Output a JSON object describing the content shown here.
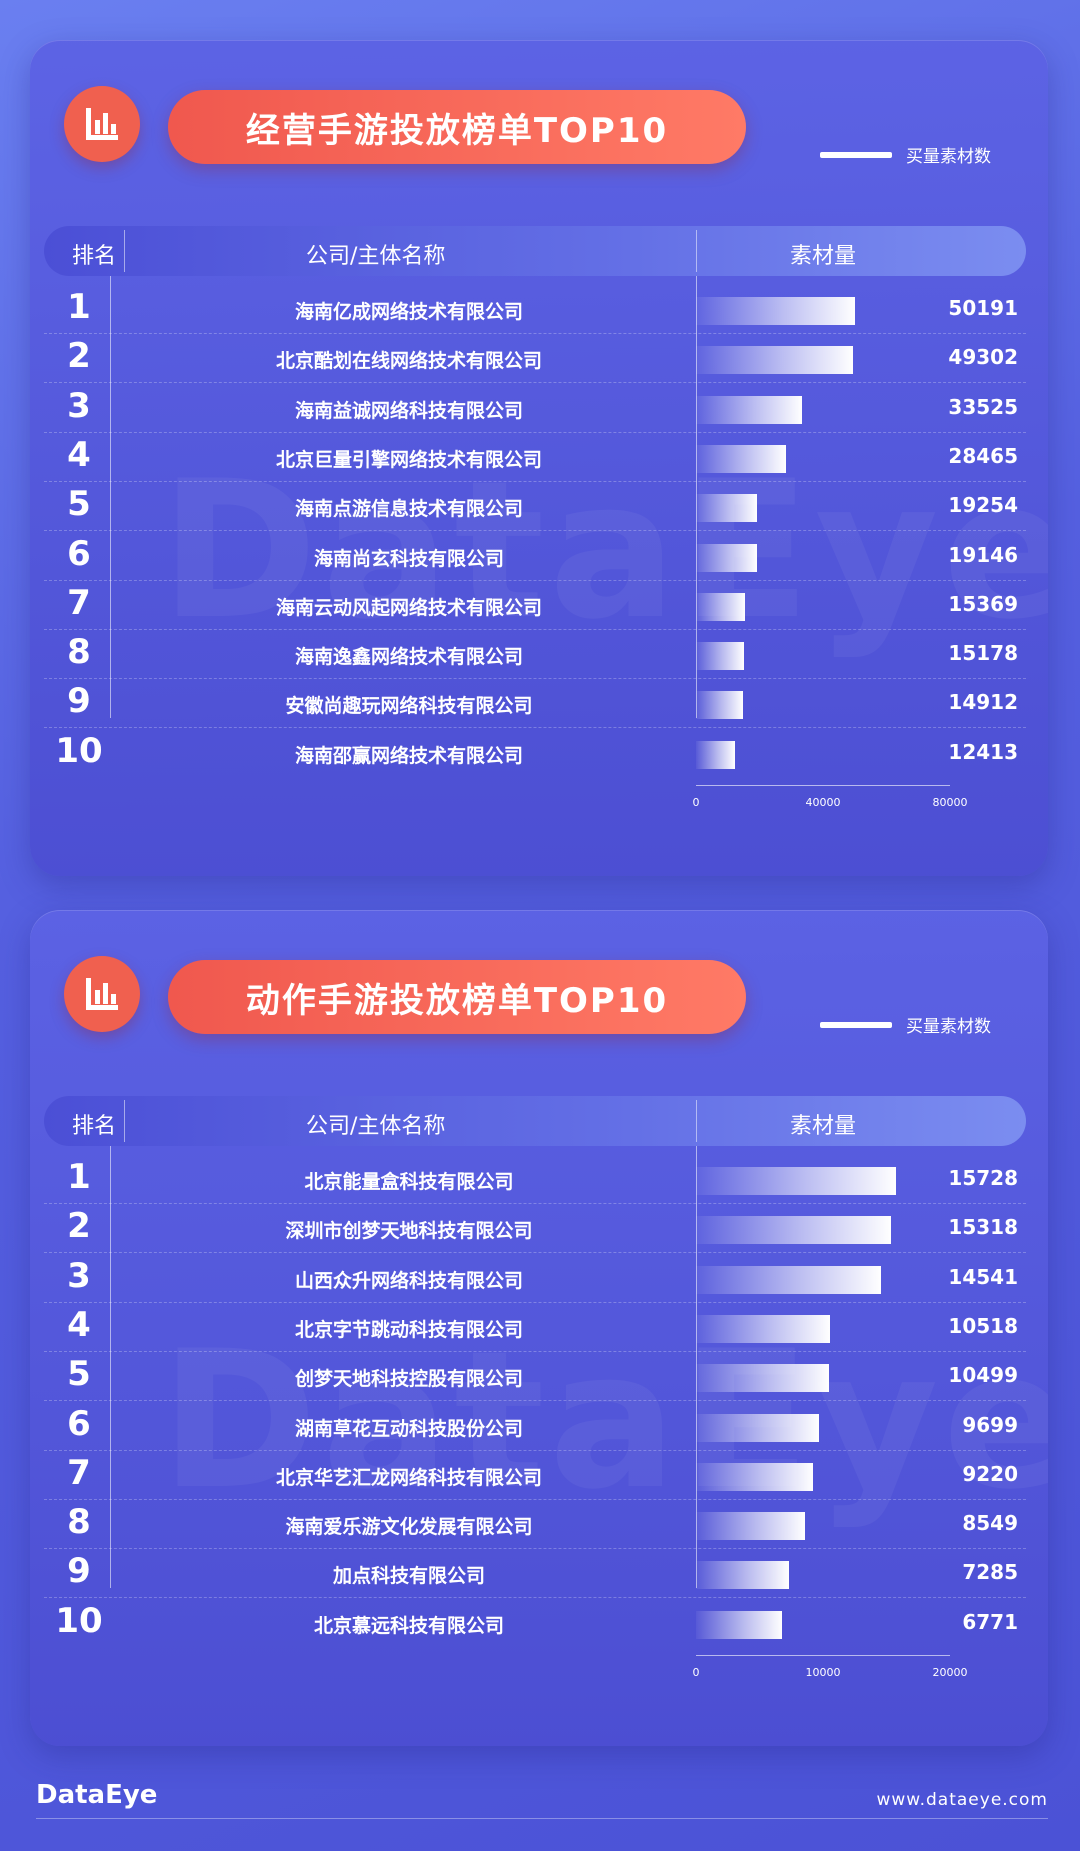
{
  "chart_data": [
    {
      "type": "bar",
      "title": "经营手游投放榜单TOP10",
      "legend": "买量素材数",
      "headers": {
        "rank": "排名",
        "company": "公司/主体名称",
        "material": "素材量"
      },
      "ranks": [
        "1",
        "2",
        "3",
        "4",
        "5",
        "6",
        "7",
        "8",
        "9",
        "10"
      ],
      "categories": [
        "海南亿成网络技术有限公司",
        "北京酷划在线网络技术有限公司",
        "海南益诚网络科技有限公司",
        "北京巨量引擎网络技术有限公司",
        "海南点游信息技术有限公司",
        "海南尚玄科技有限公司",
        "海南云动风起网络技术有限公司",
        "海南逸鑫网络技术有限公司",
        "安徽尚趣玩网络科技有限公司",
        "海南邵赢网络技术有限公司"
      ],
      "values": [
        50191,
        49302,
        33525,
        28465,
        19254,
        19146,
        15369,
        15178,
        14912,
        12413
      ],
      "xlim": [
        0,
        80000
      ],
      "ticks": [
        "0",
        "40000",
        "80000"
      ]
    },
    {
      "type": "bar",
      "title": "动作手游投放榜单TOP10",
      "legend": "买量素材数",
      "headers": {
        "rank": "排名",
        "company": "公司/主体名称",
        "material": "素材量"
      },
      "ranks": [
        "1",
        "2",
        "3",
        "4",
        "5",
        "6",
        "7",
        "8",
        "9",
        "10"
      ],
      "categories": [
        "北京能量盒科技有限公司",
        "深圳市创梦天地科技有限公司",
        "山西众升网络科技有限公司",
        "北京字节跳动科技有限公司",
        "创梦天地科技控股有限公司",
        "湖南草花互动科技股份公司",
        "北京华艺汇龙网络科技有限公司",
        "海南爱乐游文化发展有限公司",
        "加点科技有限公司",
        "北京慕远科技有限公司"
      ],
      "values": [
        15728,
        15318,
        14541,
        10518,
        10499,
        9699,
        9220,
        8549,
        7285,
        6771
      ],
      "xlim": [
        0,
        20000
      ],
      "ticks": [
        "0",
        "10000",
        "20000"
      ]
    }
  ],
  "footer": {
    "logo": "DataEye",
    "url": "www.dataeye.com"
  },
  "watermark": "DataEye",
  "colors": {
    "background": "#5560e0",
    "accent": "#f0584e",
    "bar": "#ffffff"
  },
  "icons": {
    "title_icon": "bar-chart-icon"
  }
}
